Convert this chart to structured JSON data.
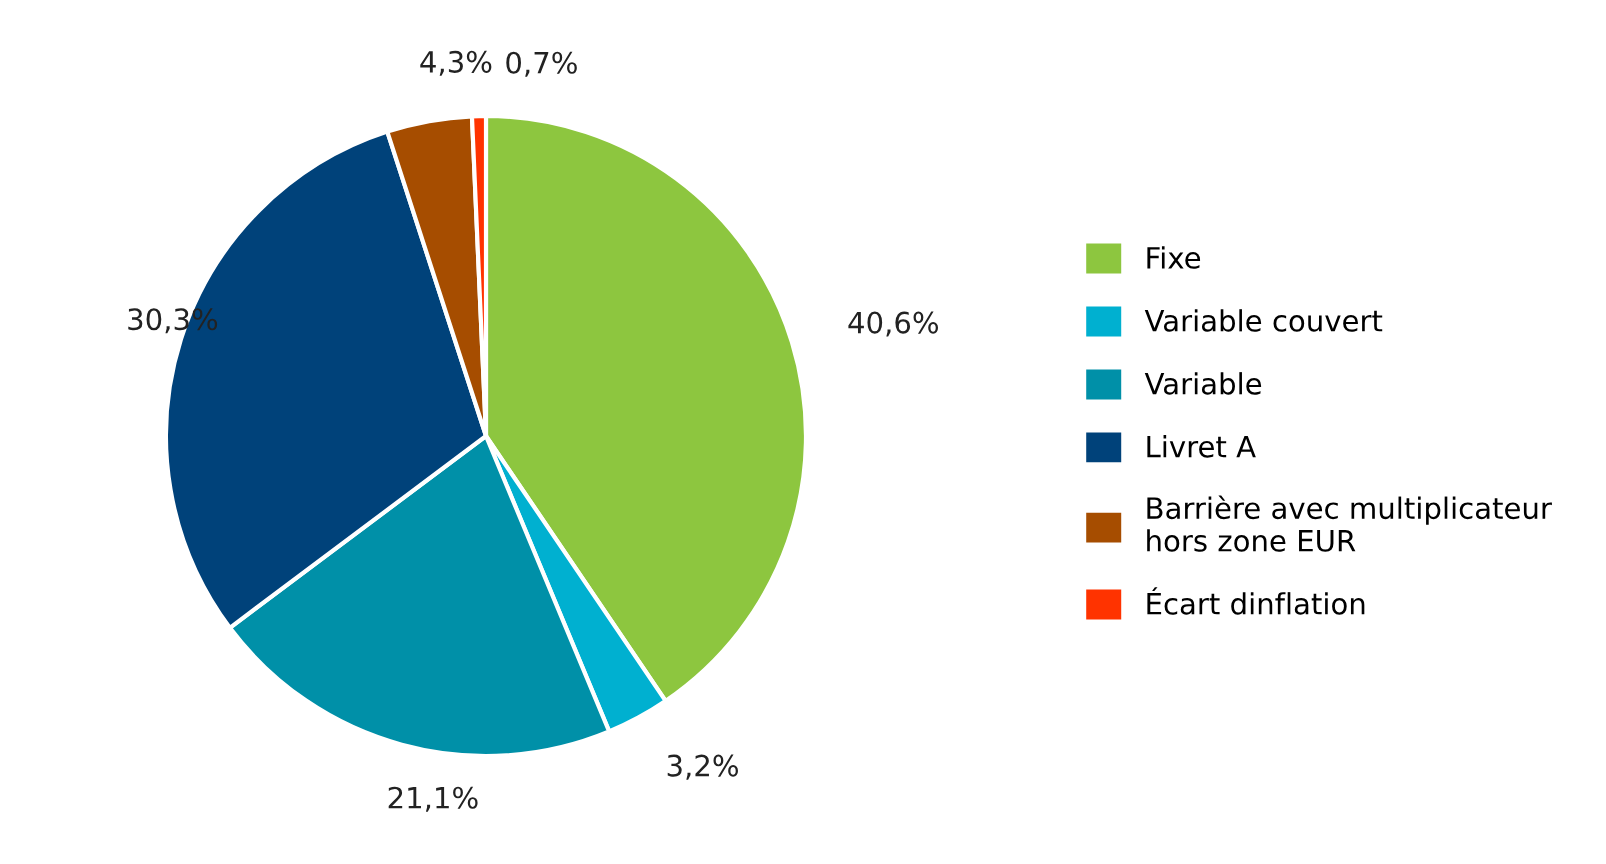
{
  "chart_data": {
    "type": "pie",
    "categories": [
      "Fixe",
      "Variable couvert",
      "Variable",
      "Livret A",
      "Barrière avec multiplicateur\nhors zone EUR",
      "Écart dinflation"
    ],
    "values": [
      40.6,
      3.2,
      21.1,
      30.3,
      4.3,
      0.7
    ],
    "value_labels": [
      "40,6%",
      "3,2%",
      "21,1%",
      "30,3%",
      "4,3%",
      "0,7%"
    ],
    "colors": [
      "#8dc63f",
      "#00b0d0",
      "#0090a8",
      "#00427a",
      "#a64d00",
      "#ff3300"
    ],
    "legend": "right"
  }
}
